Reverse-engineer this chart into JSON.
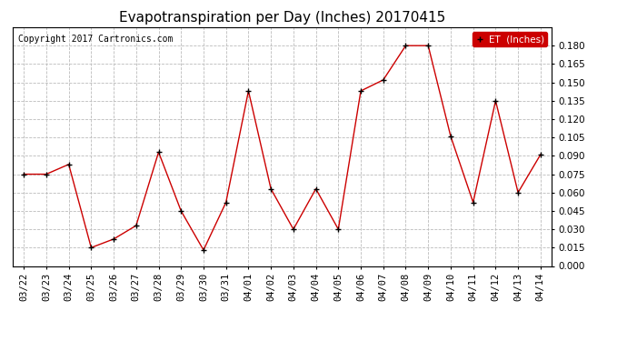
{
  "title": "Evapotranspiration per Day (Inches) 20170415",
  "copyright_text": "Copyright 2017 Cartronics.com",
  "legend_label": "ET  (Inches)",
  "legend_bg": "#cc0000",
  "legend_text_color": "#ffffff",
  "line_color": "#cc0000",
  "marker_color": "#000000",
  "dates": [
    "03/22",
    "03/23",
    "03/24",
    "03/25",
    "03/26",
    "03/27",
    "03/28",
    "03/29",
    "03/30",
    "03/31",
    "04/01",
    "04/02",
    "04/03",
    "04/04",
    "04/05",
    "04/06",
    "04/07",
    "04/08",
    "04/09",
    "04/10",
    "04/11",
    "04/12",
    "04/13",
    "04/14"
  ],
  "values": [
    0.075,
    0.075,
    0.083,
    0.015,
    0.022,
    0.033,
    0.093,
    0.045,
    0.013,
    0.052,
    0.143,
    0.063,
    0.03,
    0.063,
    0.03,
    0.143,
    0.152,
    0.18,
    0.18,
    0.106,
    0.052,
    0.135,
    0.06,
    0.091
  ],
  "ylim": [
    0.0,
    0.195
  ],
  "yticks": [
    0.0,
    0.015,
    0.03,
    0.045,
    0.06,
    0.075,
    0.09,
    0.105,
    0.12,
    0.135,
    0.15,
    0.165,
    0.18
  ],
  "background_color": "#ffffff",
  "grid_color": "#bbbbbb",
  "title_fontsize": 11,
  "copyright_fontsize": 7,
  "tick_fontsize": 7.5
}
